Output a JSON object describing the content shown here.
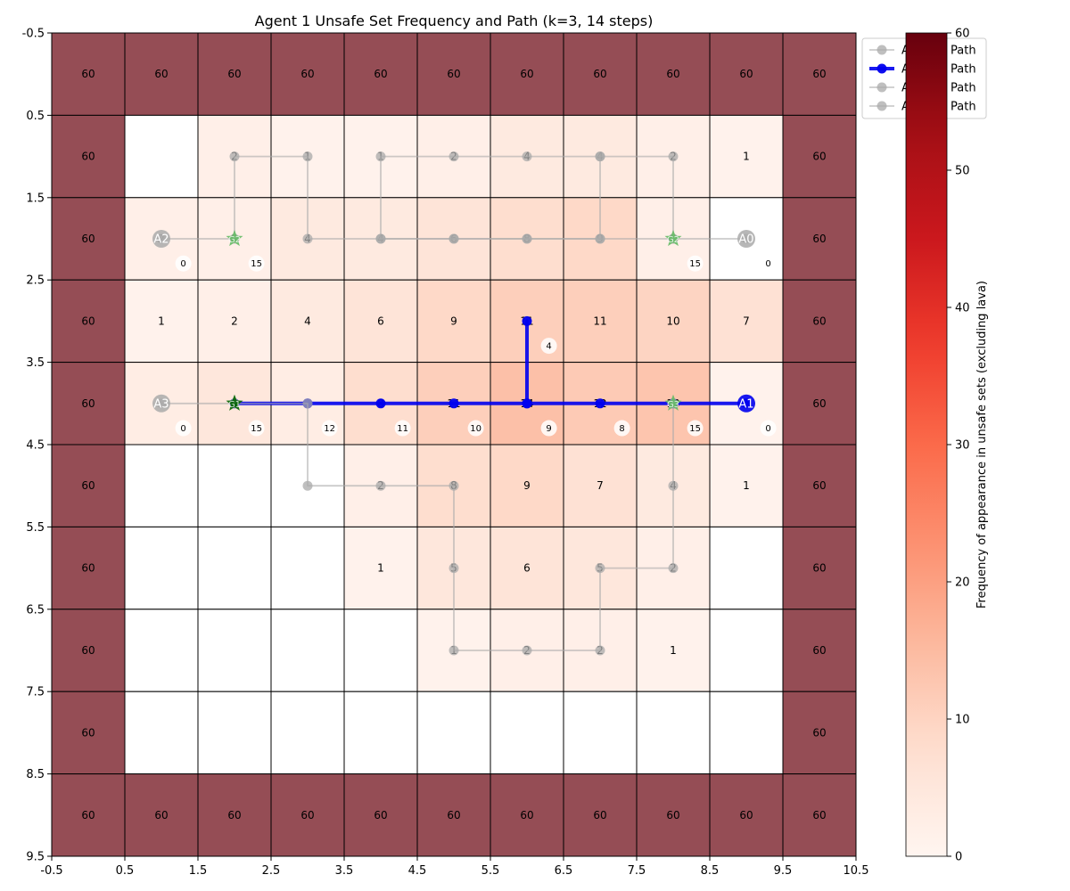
{
  "chart_data": {
    "type": "heatmap",
    "title": "Agent 1 Unsafe Set Frequency and Path (k=3, 14 steps)",
    "xlim": [
      -0.5,
      10.5
    ],
    "ylim": [
      9.5,
      -0.5
    ],
    "xticks": [
      "-0.5",
      "0.5",
      "1.5",
      "2.5",
      "3.5",
      "4.5",
      "5.5",
      "6.5",
      "7.5",
      "8.5",
      "9.5",
      "10.5"
    ],
    "yticks": [
      "-0.5",
      "0.5",
      "1.5",
      "2.5",
      "3.5",
      "4.5",
      "5.5",
      "6.5",
      "7.5",
      "8.5",
      "9.5"
    ],
    "grid": [
      [
        60,
        60,
        60,
        60,
        60,
        60,
        60,
        60,
        60,
        60,
        60
      ],
      [
        60,
        0,
        2,
        1,
        1,
        2,
        4,
        4,
        2,
        1,
        60
      ],
      [
        60,
        2,
        2,
        4,
        4,
        6,
        8,
        9,
        2,
        0,
        60
      ],
      [
        60,
        1,
        2,
        4,
        6,
        9,
        11,
        11,
        10,
        7,
        60
      ],
      [
        60,
        3,
        5,
        3,
        8,
        11,
        14,
        12,
        13,
        1,
        60
      ],
      [
        60,
        0,
        0,
        0,
        2,
        8,
        9,
        7,
        4,
        1,
        60
      ],
      [
        60,
        0,
        0,
        0,
        1,
        5,
        6,
        5,
        2,
        0,
        60
      ],
      [
        60,
        0,
        0,
        0,
        0,
        1,
        2,
        2,
        1,
        0,
        60
      ],
      [
        60,
        0,
        0,
        0,
        0,
        0,
        0,
        0,
        0,
        0,
        60
      ],
      [
        60,
        60,
        60,
        60,
        60,
        60,
        60,
        60,
        60,
        60,
        60
      ]
    ],
    "lava_value": 60,
    "lava_color": "#954d55",
    "hidden_labels": [
      [
        1,
        1
      ],
      [
        4,
        1
      ],
      [
        4,
        2
      ]
    ],
    "colorbar": {
      "label": "Frequency of appearance in unsafe sets (excluding lava)",
      "min": 0,
      "max": 60,
      "ticks": [
        "0",
        "10",
        "20",
        "30",
        "40",
        "50",
        "60"
      ]
    },
    "legend": {
      "placement": "top-right",
      "entries": [
        "Agent 0 Path",
        "Agent 1 Path",
        "Agent 2 Path",
        "Agent 3 Path"
      ]
    },
    "highlight_agent": 1,
    "paths": [
      {
        "name": "Agent 0 Path",
        "color": "#aaaaaa",
        "points": [
          [
            9,
            2
          ],
          [
            8,
            2
          ],
          [
            8,
            1
          ],
          [
            7,
            1
          ],
          [
            6,
            1
          ],
          [
            5,
            1
          ],
          [
            4,
            1
          ],
          [
            4,
            2
          ],
          [
            5,
            2
          ],
          [
            6,
            2
          ],
          [
            7,
            2
          ],
          [
            8,
            2
          ]
        ]
      },
      {
        "name": "Agent 1 Path",
        "color": "#0000ee",
        "points": [
          [
            9,
            4
          ],
          [
            8,
            4
          ],
          [
            7,
            4
          ],
          [
            6,
            4
          ],
          [
            6,
            3
          ],
          [
            6,
            4
          ],
          [
            5,
            4
          ],
          [
            4,
            4
          ],
          [
            3,
            4
          ],
          [
            2,
            4
          ]
        ]
      },
      {
        "name": "Agent 2 Path",
        "color": "#aaaaaa",
        "points": [
          [
            1,
            2
          ],
          [
            2,
            2
          ],
          [
            2,
            1
          ],
          [
            3,
            1
          ],
          [
            3,
            2
          ],
          [
            4,
            2
          ],
          [
            5,
            2
          ],
          [
            6,
            2
          ],
          [
            7,
            2
          ],
          [
            7,
            1
          ]
        ]
      },
      {
        "name": "Agent 3 Path",
        "color": "#aaaaaa",
        "points": [
          [
            1,
            4
          ],
          [
            2,
            4
          ],
          [
            3,
            4
          ],
          [
            3,
            5
          ],
          [
            4,
            5
          ],
          [
            5,
            5
          ],
          [
            5,
            6
          ],
          [
            5,
            7
          ],
          [
            6,
            7
          ],
          [
            7,
            7
          ],
          [
            7,
            6
          ],
          [
            8,
            6
          ],
          [
            8,
            5
          ],
          [
            8,
            4
          ]
        ]
      }
    ],
    "start_markers": [
      {
        "label": "A0",
        "x": 9,
        "y": 2,
        "color": "#aaaaaa"
      },
      {
        "label": "A1",
        "x": 9,
        "y": 4,
        "color": "#0000ee"
      },
      {
        "label": "A2",
        "x": 1,
        "y": 2,
        "color": "#aaaaaa"
      },
      {
        "label": "A3",
        "x": 1,
        "y": 4,
        "color": "#aaaaaa"
      }
    ],
    "goal_markers": [
      {
        "label": "G2",
        "x": 2,
        "y": 2,
        "color": "#66bb66"
      },
      {
        "label": "G2",
        "x": 8,
        "y": 2,
        "color": "#66bb66"
      },
      {
        "label": "G1",
        "x": 2,
        "y": 4,
        "color": "#006400"
      },
      {
        "label": "G3",
        "x": 8,
        "y": 4,
        "color": "#66bb66"
      }
    ],
    "step_labels": [
      {
        "text": "0",
        "x": 1,
        "y": 2
      },
      {
        "text": "15",
        "x": 2,
        "y": 2
      },
      {
        "text": "15",
        "x": 8,
        "y": 2
      },
      {
        "text": "0",
        "x": 9,
        "y": 2
      },
      {
        "text": "4",
        "x": 6,
        "y": 3
      },
      {
        "text": "0",
        "x": 1,
        "y": 4
      },
      {
        "text": "15",
        "x": 2,
        "y": 4
      },
      {
        "text": "12",
        "x": 3,
        "y": 4
      },
      {
        "text": "11",
        "x": 4,
        "y": 4
      },
      {
        "text": "10",
        "x": 5,
        "y": 4
      },
      {
        "text": "9",
        "x": 6,
        "y": 4
      },
      {
        "text": "8",
        "x": 7,
        "y": 4
      },
      {
        "text": "15",
        "x": 8,
        "y": 4
      },
      {
        "text": "0",
        "x": 9,
        "y": 4
      }
    ]
  }
}
